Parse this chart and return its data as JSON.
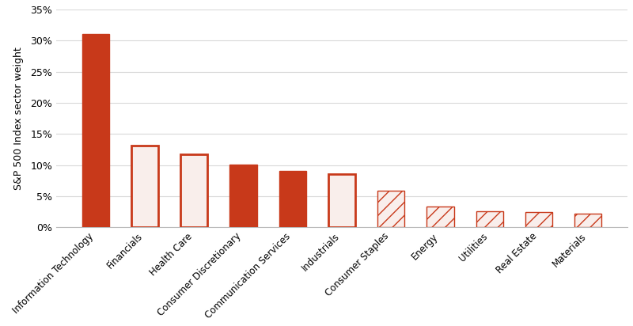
{
  "categories": [
    "Information Technology",
    "Financials",
    "Health Care",
    "Consumer Discretionary",
    "Communication Services",
    "Industrials",
    "Consumer Staples",
    "Energy",
    "Utilities",
    "Real Estate",
    "Materials"
  ],
  "values": [
    31.1,
    13.1,
    11.7,
    10.1,
    9.1,
    8.6,
    5.9,
    3.4,
    2.6,
    2.5,
    2.2
  ],
  "bar_styles": [
    "solid",
    "outline",
    "outline",
    "solid",
    "solid",
    "outline",
    "hatch",
    "hatch",
    "hatch",
    "hatch",
    "hatch"
  ],
  "solid_color": "#C8391A",
  "outline_facecolor": "#F9EEEB",
  "outline_edgecolor": "#C8391A",
  "hatch_facecolor": "#F9EEEB",
  "hatch_edgecolor": "#C8391A",
  "background_color": "#ffffff",
  "ylabel": "S&P 500 Index sector weight",
  "ylim": [
    0,
    35
  ],
  "yticks": [
    0,
    5,
    10,
    15,
    20,
    25,
    30,
    35
  ],
  "grid_color": "#d9d9d9",
  "bar_width": 0.55
}
